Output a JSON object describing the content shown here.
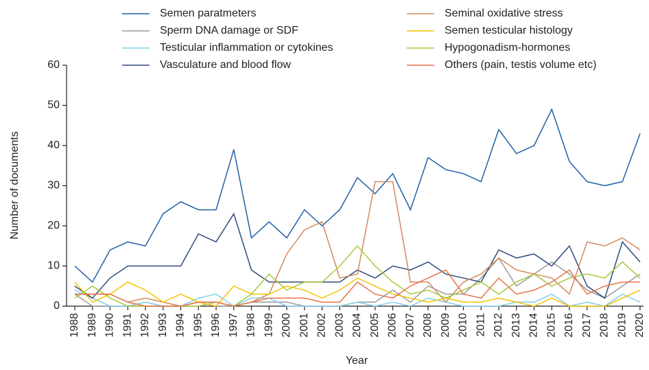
{
  "chart_data": {
    "type": "line",
    "xlabel": "Year",
    "ylabel": "Number of documents",
    "categories": [
      "1988",
      "1989",
      "1990",
      "1991",
      "1992",
      "1993",
      "1994",
      "1995",
      "1996",
      "1997",
      "1998",
      "1999",
      "2000",
      "2001",
      "2002",
      "2003",
      "2004",
      "2005",
      "2006",
      "2007",
      "2008",
      "2009",
      "2010",
      "2011",
      "2012",
      "2013",
      "2014",
      "2015",
      "2016",
      "2017",
      "2018",
      "2019",
      "2020"
    ],
    "ylim": [
      0,
      60
    ],
    "yticks": [
      0,
      10,
      20,
      30,
      40,
      50,
      60
    ],
    "grid": false,
    "legend": "top",
    "series": [
      {
        "name": "Semen paratmeters",
        "color": "#1f5fa6",
        "values": [
          10,
          6,
          14,
          16,
          15,
          23,
          26,
          24,
          24,
          39,
          17,
          21,
          17,
          24,
          20,
          24,
          32,
          28,
          33,
          24,
          37,
          34,
          33,
          31,
          44,
          38,
          40,
          49,
          36,
          31,
          30,
          31,
          43
        ]
      },
      {
        "name": "Sperm DNA damage or SDF",
        "color": "#9a9a9a",
        "values": [
          3,
          0,
          0,
          0,
          1,
          0,
          0,
          1,
          0,
          0,
          1,
          1,
          1,
          0,
          0,
          0,
          1,
          1,
          4,
          1,
          5,
          3,
          3,
          7,
          12,
          5,
          8,
          11,
          8,
          4,
          2,
          5,
          8
        ]
      },
      {
        "name": "Testicular inflammation or cytokines",
        "color": "#7fd0ec",
        "values": [
          4,
          2,
          0,
          0,
          1,
          0,
          0,
          2,
          3,
          0,
          2,
          2,
          0,
          0,
          0,
          0,
          1,
          0,
          1,
          0,
          2,
          1,
          0,
          0,
          0,
          1,
          1,
          3,
          0,
          1,
          0,
          3,
          1
        ]
      },
      {
        "name": "Vasculature and blood flow",
        "color": "#2e4a7a",
        "values": [
          5,
          2,
          7,
          10,
          10,
          10,
          10,
          18,
          16,
          23,
          9,
          6,
          6,
          6,
          6,
          6,
          9,
          7,
          10,
          9,
          11,
          8,
          7,
          6,
          14,
          12,
          13,
          10,
          15,
          5,
          2,
          16,
          11
        ]
      },
      {
        "name": "Seminal oxidative stress",
        "color": "#d4895a",
        "values": [
          3,
          3,
          3,
          1,
          2,
          1,
          0,
          1,
          1,
          0,
          1,
          3,
          13,
          19,
          21,
          7,
          8,
          31,
          31,
          6,
          6,
          1,
          6,
          8,
          12,
          9,
          8,
          7,
          3,
          16,
          15,
          17,
          14
        ]
      },
      {
        "name": "Semen testicular histology",
        "color": "#f5c200",
        "values": [
          6,
          1,
          3,
          6,
          4,
          1,
          3,
          1,
          0,
          5,
          3,
          3,
          5,
          4,
          2,
          4,
          7,
          5,
          3,
          2,
          1,
          2,
          1,
          1,
          2,
          1,
          0,
          2,
          0,
          0,
          0,
          2,
          4
        ]
      },
      {
        "name": "Hypogonadism-hormones",
        "color": "#a5c93a",
        "values": [
          2,
          5,
          2,
          0,
          0,
          0,
          0,
          0,
          1,
          0,
          3,
          8,
          4,
          6,
          6,
          10,
          15,
          10,
          6,
          3,
          4,
          2,
          4,
          6,
          3,
          6,
          8,
          5,
          7,
          8,
          7,
          11,
          7
        ]
      },
      {
        "name": "Others (pain, testis volume etc)",
        "color": "#e8724a",
        "values": [
          3,
          3,
          3,
          1,
          0,
          0,
          0,
          1,
          1,
          0,
          1,
          2,
          2,
          2,
          1,
          1,
          6,
          3,
          2,
          5,
          7,
          9,
          3,
          2,
          7,
          3,
          4,
          6,
          9,
          3,
          5,
          6,
          6
        ]
      }
    ]
  }
}
